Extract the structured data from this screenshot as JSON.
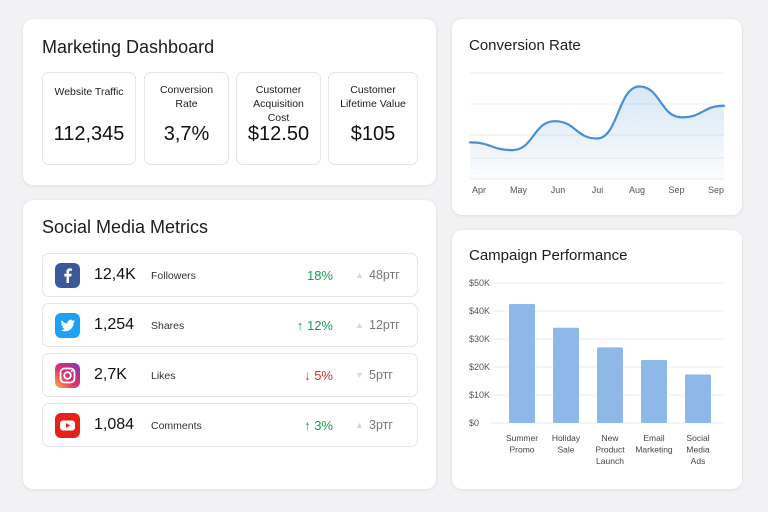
{
  "marketing": {
    "title": "Marketing Dashboard",
    "kpis": [
      {
        "label": "Website Traffic",
        "value": "112,345"
      },
      {
        "label": "Conversion Rate",
        "value": "3,7%"
      },
      {
        "label": "Customer Acquisition Cost",
        "value": "$12.50"
      },
      {
        "label": "Customer Lifetime Value",
        "value": "$105"
      }
    ]
  },
  "social": {
    "title": "Social Media Metrics",
    "rows": [
      {
        "icon": "facebook-icon",
        "color": "#3b5998",
        "value": "12,4K",
        "label": "Followers",
        "change": "18%",
        "direction": "up",
        "extra": "48ртг"
      },
      {
        "icon": "twitter-icon",
        "color": "#1da1f2",
        "value": "1,254",
        "label": "Shares",
        "change": "↑ 12%",
        "direction": "up",
        "extra": "12ртг"
      },
      {
        "icon": "instagram-icon",
        "color": "#d6249f",
        "value": "2,7K",
        "label": "Likes",
        "change": "↓ 5%",
        "direction": "down",
        "extra": "5ртг"
      },
      {
        "icon": "youtube-icon",
        "color": "#e62117",
        "value": "1,084",
        "label": "Comments",
        "change": "↑ 3%",
        "direction": "up",
        "extra": "3ртг"
      }
    ]
  },
  "conversion": {
    "title": "Conversion Rate",
    "chart_data": {
      "type": "area",
      "categories": [
        "Apr",
        "May",
        "Jun",
        "Jui",
        "Aug",
        "Sep",
        "Sep"
      ],
      "values": [
        0.4,
        0.0,
        1.5,
        0.6,
        3.3,
        1.7,
        2.3
      ],
      "ylim": [
        -1.5,
        4.0
      ],
      "grid": true,
      "color": "#4a8ed6"
    }
  },
  "campaign": {
    "title": "Campaign Performance",
    "chart_data": {
      "type": "bar",
      "categories": [
        [
          "Summer",
          "Promo"
        ],
        [
          "Holiday",
          "Sale"
        ],
        [
          "New",
          "Product",
          "Launch"
        ],
        [
          "Email",
          "Marketing"
        ],
        [
          "Social",
          "Media",
          "Ads"
        ]
      ],
      "values": [
        42500,
        34000,
        27000,
        22500,
        17300
      ],
      "yticks": [
        "$0",
        "$10K",
        "$20K",
        "$30K",
        "$40K",
        "$50K"
      ],
      "ylim": [
        0,
        50000
      ],
      "grid": true,
      "color": "#8db8e8"
    }
  }
}
